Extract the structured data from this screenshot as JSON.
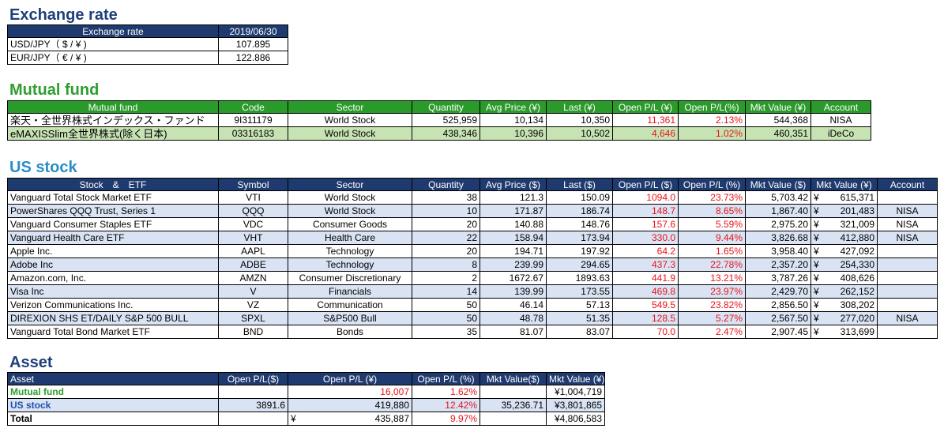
{
  "exchange": {
    "title": "Exchange rate",
    "headers": [
      "Exchange rate",
      "2019/06/30"
    ],
    "rows": [
      {
        "pair": "USD/JPY（ $ / ¥ )",
        "rate": "107.895"
      },
      {
        "pair": "EUR/JPY（ € / ¥ )",
        "rate": "122.886"
      }
    ]
  },
  "mutual": {
    "title": "Mutual fund",
    "headers": [
      "Mutual fund",
      "Code",
      "Sector",
      "Quantity",
      "Avg Price (¥)",
      "Last (¥)",
      "Open P/L (¥)",
      "Open P/L(%)",
      "Mkt Value (¥)",
      "Account"
    ],
    "rows": [
      {
        "name": "楽天・全世界株式インデックス・ファンド",
        "code": "9I311179",
        "sector": "World Stock",
        "qty": "525,959",
        "avg": "10,134",
        "last": "10,350",
        "pl": "11,361",
        "plpct": "2.13%",
        "mkt": "544,368",
        "account": "NISA"
      },
      {
        "name": "eMAXISSlim全世界株式(除く日本)",
        "code": "03316183",
        "sector": "World Stock",
        "qty": "438,346",
        "avg": "10,396",
        "last": "10,502",
        "pl": "4,646",
        "plpct": "1.02%",
        "mkt": "460,351",
        "account": "iDeCo"
      }
    ]
  },
  "us": {
    "title": "US stock",
    "headers": [
      "Stock　&　ETF",
      "Symbol",
      "Sector",
      "Quantity",
      "Avg Price ($)",
      "Last ($)",
      "Open P/L ($)",
      "Open P/L (%)",
      "Mkt Value ($)",
      "Mkt Value (¥)",
      "Account"
    ],
    "rows": [
      {
        "name": "Vanguard Total Stock Market ETF",
        "symbol": "VTI",
        "sector": "World Stock",
        "qty": "38",
        "avg": "121.3",
        "last": "150.09",
        "pl": "1094.0",
        "plpct": "23.73%",
        "mktusd": "5,703.42",
        "mktjpy": "615,371",
        "account": ""
      },
      {
        "name": "PowerShares QQQ Trust, Series 1",
        "symbol": "QQQ",
        "sector": "World Stock",
        "qty": "10",
        "avg": "171.87",
        "last": "186.74",
        "pl": "148.7",
        "plpct": "8.65%",
        "mktusd": "1,867.40",
        "mktjpy": "201,483",
        "account": "NISA"
      },
      {
        "name": "Vanguard Consumer Staples ETF",
        "symbol": "VDC",
        "sector": "Consumer Goods",
        "qty": "20",
        "avg": "140.88",
        "last": "148.76",
        "pl": "157.6",
        "plpct": "5.59%",
        "mktusd": "2,975.20",
        "mktjpy": "321,009",
        "account": "NISA"
      },
      {
        "name": "Vanguard Health Care ETF",
        "symbol": "VHT",
        "sector": "Health Care",
        "qty": "22",
        "avg": "158.94",
        "last": "173.94",
        "pl": "330.0",
        "plpct": "9.44%",
        "mktusd": "3,826.68",
        "mktjpy": "412,880",
        "account": "NISA"
      },
      {
        "name": "Apple Inc.",
        "symbol": "AAPL",
        "sector": "Technology",
        "qty": "20",
        "avg": "194.71",
        "last": "197.92",
        "pl": "64.2",
        "plpct": "1.65%",
        "mktusd": "3,958.40",
        "mktjpy": "427,092",
        "account": ""
      },
      {
        "name": "Adobe Inc",
        "symbol": "ADBE",
        "sector": "Technology",
        "qty": "8",
        "avg": "239.99",
        "last": "294.65",
        "pl": "437.3",
        "plpct": "22.78%",
        "mktusd": "2,357.20",
        "mktjpy": "254,330",
        "account": ""
      },
      {
        "name": "Amazon.com, Inc.",
        "symbol": "AMZN",
        "sector": "Consumer Discretionary",
        "qty": "2",
        "avg": "1672.67",
        "last": "1893.63",
        "pl": "441.9",
        "plpct": "13.21%",
        "mktusd": "3,787.26",
        "mktjpy": "408,626",
        "account": ""
      },
      {
        "name": "Visa Inc",
        "symbol": "V",
        "sector": "Financials",
        "qty": "14",
        "avg": "139.99",
        "last": "173.55",
        "pl": "469.8",
        "plpct": "23.97%",
        "mktusd": "2,429.70",
        "mktjpy": "262,152",
        "account": ""
      },
      {
        "name": "Verizon Communications Inc.",
        "symbol": "VZ",
        "sector": "Communication",
        "qty": "50",
        "avg": "46.14",
        "last": "57.13",
        "pl": "549.5",
        "plpct": "23.82%",
        "mktusd": "2,856.50",
        "mktjpy": "308,202",
        "account": ""
      },
      {
        "name": "DIREXION SHS ET/DAILY S&P 500 BULL",
        "symbol": "SPXL",
        "sector": "S&P500 Bull",
        "qty": "50",
        "avg": "48.78",
        "last": "51.35",
        "pl": "128.5",
        "plpct": "5.27%",
        "mktusd": "2,567.50",
        "mktjpy": "277,020",
        "account": "NISA"
      },
      {
        "name": "Vanguard Total Bond Market ETF",
        "symbol": "BND",
        "sector": "Bonds",
        "qty": "35",
        "avg": "81.07",
        "last": "83.07",
        "pl": "70.0",
        "plpct": "2.47%",
        "mktusd": "2,907.45",
        "mktjpy": "313,699",
        "account": ""
      }
    ]
  },
  "asset": {
    "title": "Asset",
    "headers": [
      "Asset",
      "Open P/L($)",
      "Open P/L (¥)",
      "Open P/L (%)",
      "Mkt Value($)",
      "Mkt Value (¥)"
    ],
    "rows": [
      {
        "label": "Mutual fund",
        "plusd": "",
        "pljpy_prefix": "",
        "pljpy": "16,007",
        "plpct": "1.62%",
        "mktusd": "",
        "mktjpy": "¥1,004,719"
      },
      {
        "label": "US stock",
        "plusd": "3891.6",
        "pljpy_prefix": "",
        "pljpy": "419,880",
        "plpct": "12.42%",
        "mktusd": "35,236.71",
        "mktjpy": "¥3,801,865"
      },
      {
        "label": "Total",
        "plusd": "",
        "pljpy_prefix": "¥",
        "pljpy": "435,887",
        "plpct": "9.97%",
        "mktusd": "",
        "mktjpy": "¥4,806,583"
      }
    ]
  },
  "yen_symbol": "¥",
  "colors": {
    "header_blue": "#1f3a6e",
    "header_green": "#2a9a2a",
    "loss_red": "#e8141a",
    "row_green": "#c7e3b4",
    "row_blue": "#d9e3f3"
  }
}
